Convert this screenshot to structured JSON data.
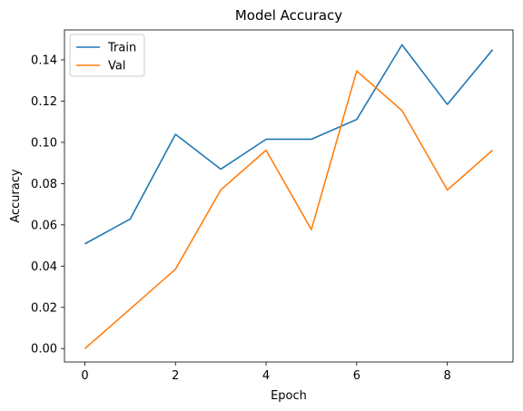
{
  "chart_data": {
    "type": "line",
    "title": "Model Accuracy",
    "xlabel": "Epoch",
    "ylabel": "Accuracy",
    "x": [
      0,
      1,
      2,
      3,
      4,
      5,
      6,
      7,
      8,
      9
    ],
    "xlim": [
      -0.45,
      9.45
    ],
    "ylim": [
      -0.0065,
      0.1545
    ],
    "xticks": [
      0,
      2,
      4,
      6,
      8
    ],
    "yticks": [
      0.0,
      0.02,
      0.04,
      0.06,
      0.08,
      0.1,
      0.12,
      0.14
    ],
    "ytick_labels": [
      "0.00",
      "0.02",
      "0.04",
      "0.06",
      "0.08",
      "0.10",
      "0.12",
      "0.14"
    ],
    "xtick_labels": [
      "0",
      "2",
      "4",
      "6",
      "8"
    ],
    "grid": false,
    "legend": "top-left",
    "series": [
      {
        "name": "Train",
        "color": "#1f77b4",
        "values": [
          0.0508,
          0.0628,
          0.1039,
          0.087,
          0.1015,
          0.1015,
          0.1111,
          0.1473,
          0.1184,
          0.1449
        ]
      },
      {
        "name": "Val",
        "color": "#ff7f0e",
        "values": [
          0.0,
          0.0192,
          0.0385,
          0.0769,
          0.0962,
          0.0577,
          0.1346,
          0.1154,
          0.0769,
          0.0962
        ]
      }
    ]
  }
}
